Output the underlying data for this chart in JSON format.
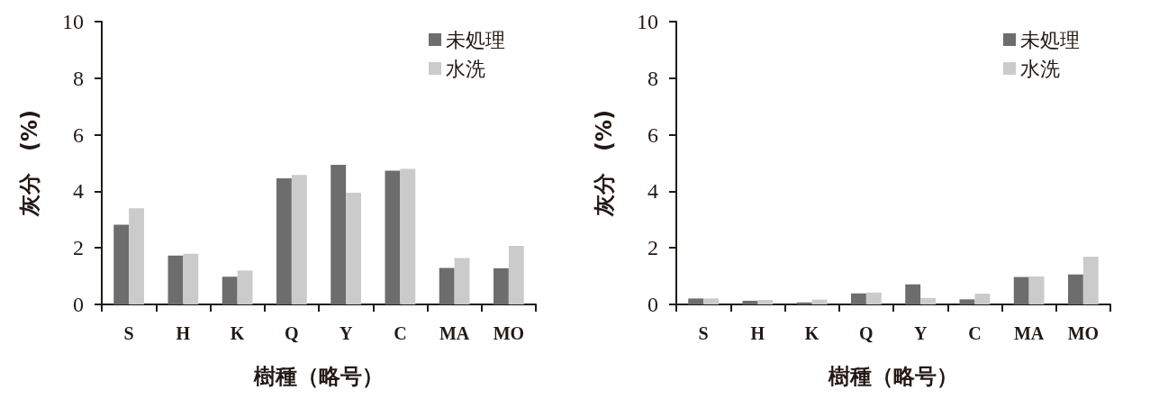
{
  "chart_data": [
    {
      "type": "bar",
      "xlabel": "樹種（略号）",
      "ylabel": "灰分　(%)",
      "categories": [
        "S",
        "H",
        "K",
        "Q",
        "Y",
        "C",
        "MA",
        "MO"
      ],
      "series": [
        {
          "name": "未処理",
          "color": "#6d6d6d",
          "values": [
            2.82,
            1.73,
            0.98,
            4.46,
            4.94,
            4.73,
            1.29,
            1.28
          ]
        },
        {
          "name": "水洗",
          "color": "#cbcbcb",
          "values": [
            3.4,
            1.79,
            1.2,
            4.58,
            3.95,
            4.79,
            1.64,
            2.07
          ]
        }
      ],
      "ylim": [
        0,
        10
      ],
      "yticks": [
        0,
        2,
        4,
        6,
        8,
        10
      ],
      "grid": false,
      "legend": "top right"
    },
    {
      "type": "bar",
      "xlabel": "樹種（略号）",
      "ylabel": "灰分　(%)",
      "categories": [
        "S",
        "H",
        "K",
        "Q",
        "Y",
        "C",
        "MA",
        "MO"
      ],
      "series": [
        {
          "name": "未処理",
          "color": "#6d6d6d",
          "values": [
            0.21,
            0.13,
            0.07,
            0.39,
            0.71,
            0.18,
            0.97,
            1.06
          ]
        },
        {
          "name": "水洗",
          "color": "#cbcbcb",
          "values": [
            0.21,
            0.16,
            0.17,
            0.42,
            0.23,
            0.38,
            0.99,
            1.69
          ]
        }
      ],
      "ylim": [
        0,
        10
      ],
      "yticks": [
        0,
        2,
        4,
        6,
        8,
        10
      ],
      "grid": false,
      "legend": "top right"
    }
  ]
}
